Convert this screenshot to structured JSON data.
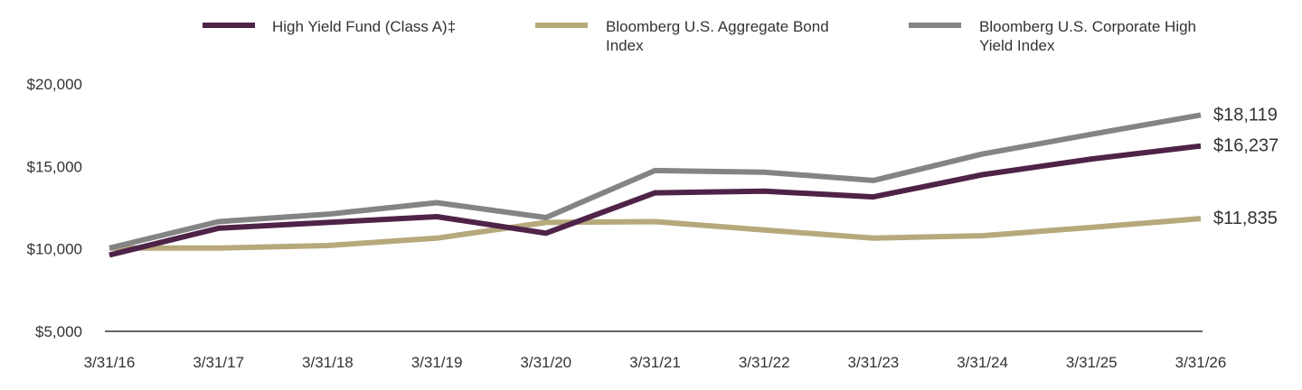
{
  "chart_data": {
    "type": "line",
    "title": "",
    "xlabel": "",
    "ylabel": "",
    "categories": [
      "3/31/16",
      "3/31/17",
      "3/31/18",
      "3/31/19",
      "3/31/20",
      "3/31/21",
      "3/31/22",
      "3/31/23",
      "3/31/24",
      "3/31/25",
      "3/31/26"
    ],
    "y_ticks": [
      "$5,000",
      "$10,000",
      "$15,000",
      "$20,000"
    ],
    "y_tick_values": [
      5000,
      10000,
      15000,
      20000
    ],
    "ylim": [
      5000,
      20000
    ],
    "grid": false,
    "legend_position": "top",
    "series": [
      {
        "name": "High Yield Fund (Class A)‡",
        "color": "#4f2348",
        "values": [
          9625,
          11250,
          11600,
          11950,
          10950,
          13400,
          13500,
          13150,
          14500,
          15450,
          16237
        ],
        "end_label": "$16,237"
      },
      {
        "name": "Bloomberg U.S. Aggregate Bond Index",
        "color": "#b6a97c",
        "values": [
          10050,
          10050,
          10200,
          10650,
          11600,
          11650,
          11150,
          10650,
          10800,
          11300,
          11835
        ],
        "end_label": "$11,835"
      },
      {
        "name": "Bloomberg U.S. Corporate High Yield Index",
        "color": "#848485",
        "values": [
          10050,
          11650,
          12100,
          12800,
          11900,
          14750,
          14650,
          14150,
          15750,
          16950,
          18119
        ],
        "end_label": "$18,119"
      }
    ]
  }
}
